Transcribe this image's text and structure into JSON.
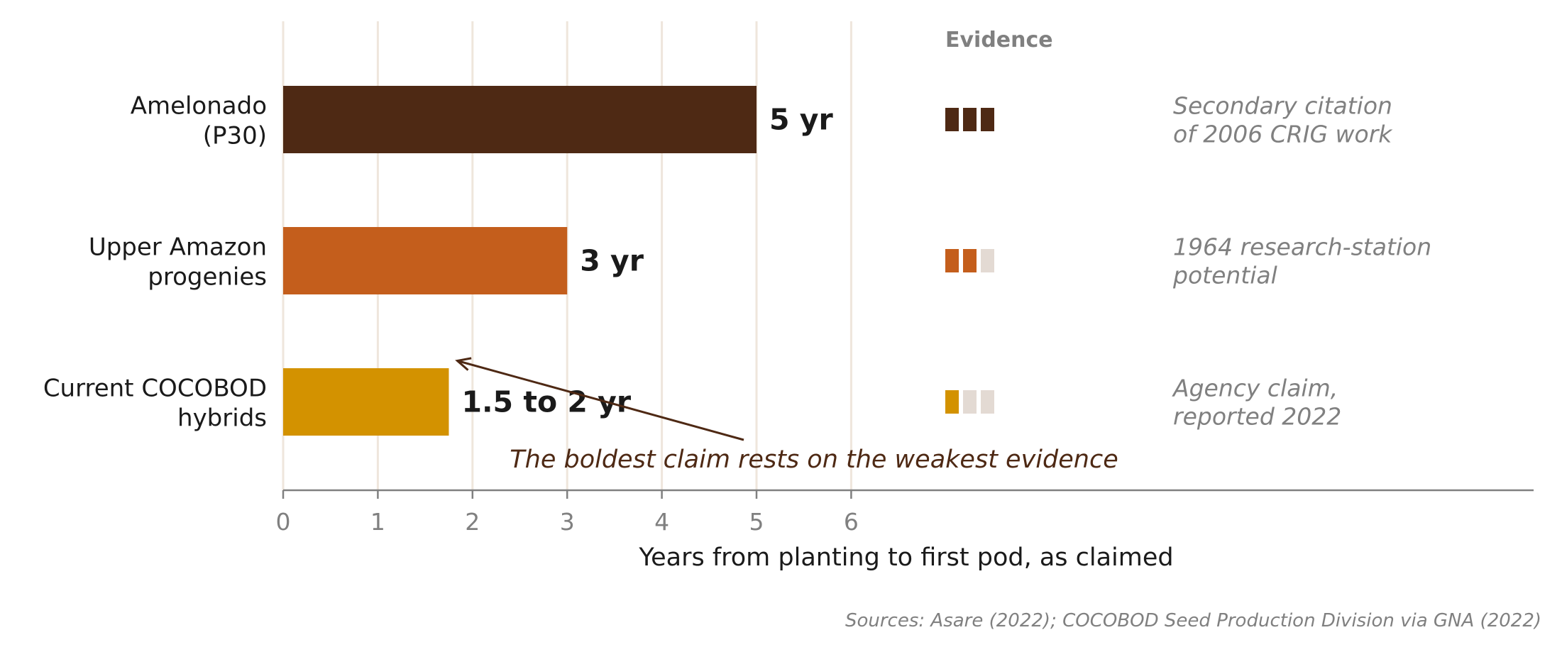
{
  "chart_data": {
    "type": "bar",
    "orientation": "horizontal",
    "categories": [
      [
        "Amelonado",
        "(P30)"
      ],
      [
        "Upper Amazon",
        "progenies"
      ],
      [
        "Current COCOBOD",
        "hybrids"
      ]
    ],
    "values": [
      5,
      3,
      1.75
    ],
    "value_labels": [
      "5 yr",
      "3 yr",
      "1.5 to 2 yr"
    ],
    "colors": [
      "#4e2914",
      "#c45e1c",
      "#d39200"
    ],
    "xlabel": "Years from planting to first pod, as claimed",
    "xticks": [
      "0",
      "1",
      "2",
      "3",
      "4",
      "5",
      "6"
    ],
    "xlim": [
      0,
      6
    ],
    "grid": "vertical",
    "evidence": {
      "title": "Evidence",
      "max_score": 3,
      "scores": [
        3,
        2,
        1
      ],
      "empty_color": "#e3dad3"
    },
    "notes": [
      [
        "Secondary citation",
        "of 2006 CRIG work"
      ],
      [
        "1964 research-station",
        "potential"
      ],
      [
        "Agency claim,",
        "reported 2022"
      ]
    ],
    "annotation": {
      "text": "The boldest claim rests on the weakest evidence",
      "points_to_category": 2,
      "color": "#4e2914"
    },
    "source": "Sources: Asare (2022); COCOBOD Seed Production Division via GNA (2022)"
  }
}
